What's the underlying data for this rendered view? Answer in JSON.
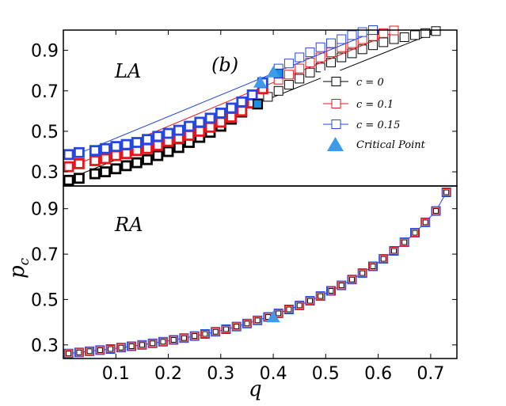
{
  "chart_data": [
    {
      "type": "line",
      "panel": "top",
      "panel_label": "LA",
      "annotation": "(b)",
      "xlim": [
        0.0,
        0.75
      ],
      "ylim": [
        0.23,
        1.0
      ],
      "yticks": [
        "0.3",
        "0.5",
        "0.7",
        "0.9"
      ],
      "ytick_values": [
        0.3,
        0.5,
        0.7,
        0.9
      ],
      "series": [
        {
          "name": "c = 0",
          "color": "#000000",
          "line_x": [
            0.01,
            0.72
          ],
          "line_y": [
            0.265,
            1.0
          ],
          "bold_x": [
            0.01,
            0.03,
            0.06,
            0.08,
            0.1,
            0.12,
            0.14,
            0.16,
            0.18,
            0.2,
            0.22,
            0.24,
            0.26,
            0.28,
            0.3,
            0.32,
            0.34,
            0.37
          ],
          "bold_y": [
            0.258,
            0.268,
            0.29,
            0.3,
            0.315,
            0.33,
            0.345,
            0.36,
            0.38,
            0.4,
            0.42,
            0.445,
            0.47,
            0.495,
            0.525,
            0.56,
            0.595,
            0.635
          ],
          "x": [
            0.39,
            0.41,
            0.43,
            0.45,
            0.47,
            0.49,
            0.51,
            0.53,
            0.55,
            0.57,
            0.59,
            0.61,
            0.63,
            0.65,
            0.67,
            0.69,
            0.71
          ],
          "y": [
            0.67,
            0.7,
            0.73,
            0.76,
            0.79,
            0.815,
            0.84,
            0.865,
            0.885,
            0.905,
            0.925,
            0.94,
            0.955,
            0.965,
            0.975,
            0.985,
            0.995
          ]
        },
        {
          "name": "c = 0.1",
          "color": "#e8161b",
          "line_x": [
            0.01,
            0.64
          ],
          "line_y": [
            0.32,
            1.0
          ],
          "bold_x": [
            0.01,
            0.03,
            0.06,
            0.08,
            0.1,
            0.12,
            0.14,
            0.16,
            0.18,
            0.2,
            0.22,
            0.24,
            0.26,
            0.28,
            0.3,
            0.32,
            0.34,
            0.36,
            0.38
          ],
          "bold_y": [
            0.325,
            0.34,
            0.355,
            0.365,
            0.38,
            0.39,
            0.405,
            0.415,
            0.43,
            0.45,
            0.465,
            0.48,
            0.5,
            0.52,
            0.545,
            0.57,
            0.6,
            0.64,
            0.71
          ],
          "x": [
            0.41,
            0.43,
            0.45,
            0.47,
            0.49,
            0.51,
            0.53,
            0.55,
            0.57,
            0.59,
            0.61,
            0.63
          ],
          "y": [
            0.755,
            0.78,
            0.81,
            0.84,
            0.865,
            0.89,
            0.915,
            0.935,
            0.955,
            0.97,
            0.985,
            0.998
          ]
        },
        {
          "name": "c = 0.15",
          "color": "#2447e2",
          "line_x": [
            0.01,
            0.6
          ],
          "line_y": [
            0.37,
            1.0
          ],
          "bold_x": [
            0.01,
            0.03,
            0.06,
            0.08,
            0.1,
            0.12,
            0.14,
            0.16,
            0.18,
            0.2,
            0.22,
            0.24,
            0.26,
            0.28,
            0.3,
            0.32,
            0.34,
            0.36,
            0.38
          ],
          "bold_y": [
            0.385,
            0.395,
            0.405,
            0.415,
            0.425,
            0.435,
            0.445,
            0.46,
            0.475,
            0.49,
            0.505,
            0.525,
            0.545,
            0.565,
            0.59,
            0.615,
            0.645,
            0.68,
            0.74
          ],
          "x": [
            0.41,
            0.43,
            0.45,
            0.47,
            0.49,
            0.51,
            0.53,
            0.55,
            0.57,
            0.59
          ],
          "y": [
            0.81,
            0.835,
            0.865,
            0.89,
            0.915,
            0.935,
            0.955,
            0.975,
            0.99,
            1.0
          ]
        }
      ],
      "filled_squares": [
        {
          "x": 0.37,
          "y": 0.635,
          "color": "#1a8fe8",
          "edge": "#000000"
        },
        {
          "x": 0.41,
          "y": 0.785,
          "color": "#1a8fe8",
          "edge": "#1e3ad6"
        }
      ],
      "critical_points": [
        {
          "x": 0.375,
          "y": 0.745
        },
        {
          "x": 0.4,
          "y": 0.795
        }
      ],
      "legend": {
        "position": "center-right",
        "entries": [
          {
            "label": "c = 0",
            "color": "#000000"
          },
          {
            "label": "c = 0.1",
            "color": "#e8161b"
          },
          {
            "label": "c = 0.15",
            "color": "#2447e2"
          },
          {
            "label": "Critical Point",
            "color": "#3d9be9"
          }
        ]
      }
    },
    {
      "type": "line",
      "panel": "bottom",
      "panel_label": "RA",
      "xlim": [
        0.0,
        0.75
      ],
      "ylim": [
        0.24,
        1.0
      ],
      "xlabel": "q",
      "ylabel": "p",
      "ylabel_sub": "c",
      "xticks": [
        "0.1",
        "0.2",
        "0.3",
        "0.4",
        "0.5",
        "0.6",
        "0.7"
      ],
      "xtick_values": [
        0.1,
        0.2,
        0.3,
        0.4,
        0.5,
        0.6,
        0.7
      ],
      "yticks": [
        "0.3",
        "0.5",
        "0.7",
        "0.9"
      ],
      "ytick_values": [
        0.3,
        0.5,
        0.7,
        0.9
      ],
      "series_x": [
        0.01,
        0.03,
        0.05,
        0.07,
        0.09,
        0.11,
        0.13,
        0.15,
        0.17,
        0.19,
        0.21,
        0.23,
        0.25,
        0.27,
        0.29,
        0.31,
        0.33,
        0.35,
        0.37,
        0.39,
        0.41,
        0.43,
        0.45,
        0.47,
        0.49,
        0.51,
        0.53,
        0.55,
        0.57,
        0.59,
        0.61,
        0.63,
        0.65,
        0.67,
        0.69,
        0.71,
        0.73
      ],
      "series_y": [
        0.262,
        0.267,
        0.272,
        0.277,
        0.282,
        0.288,
        0.294,
        0.3,
        0.307,
        0.314,
        0.322,
        0.33,
        0.339,
        0.348,
        0.358,
        0.369,
        0.381,
        0.394,
        0.408,
        0.423,
        0.439,
        0.456,
        0.474,
        0.494,
        0.515,
        0.538,
        0.562,
        0.588,
        0.616,
        0.646,
        0.679,
        0.714,
        0.752,
        0.794,
        0.84,
        0.89,
        0.972
      ],
      "series": [
        {
          "name": "c = 0",
          "color": "#000000"
        },
        {
          "name": "c = 0.1",
          "color": "#e8161b"
        },
        {
          "name": "c = 0.15",
          "color": "#2447e2"
        }
      ],
      "critical_point": {
        "x": 0.4,
        "y": 0.425
      }
    }
  ]
}
